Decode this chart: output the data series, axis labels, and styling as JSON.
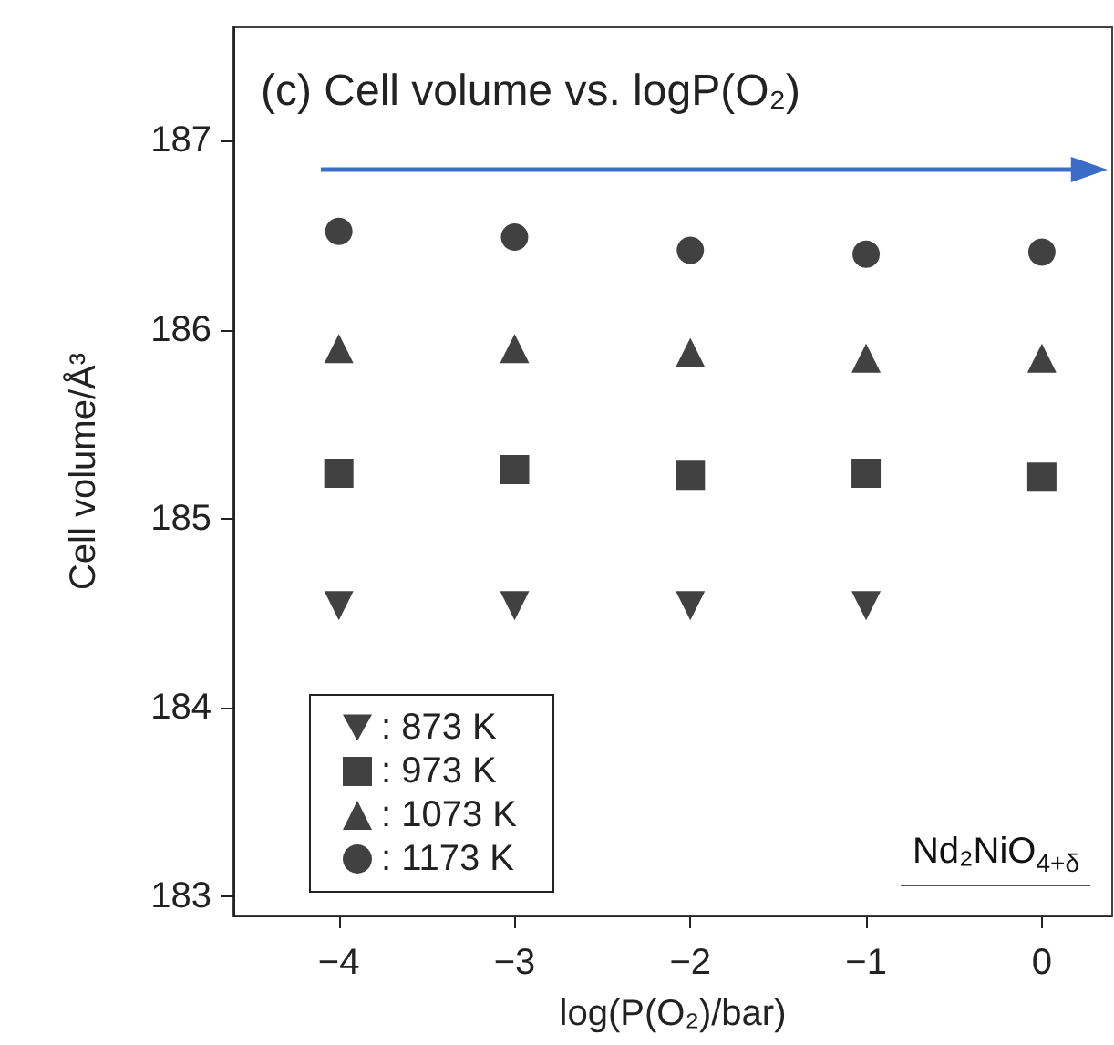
{
  "chart_data": {
    "type": "scatter",
    "title": "(c) Cell volume vs. logP(O₂)",
    "xlabel": "log(P(O₂)/bar)",
    "ylabel": "Cell volume/Å³",
    "annotations": [
      "Nd₂NiO$_{4+δ}$"
    ],
    "x": [
      -4,
      -3,
      -2,
      -1,
      0
    ],
    "series": [
      {
        "name": ": 873 K",
        "color": "#111111",
        "marker": "triangle_down",
        "values": [
          184.54,
          184.54,
          184.54,
          184.54,
          null
        ]
      },
      {
        "name": ": 973 K",
        "color": "#111111",
        "marker": "square",
        "values": [
          185.24,
          185.26,
          185.23,
          185.24,
          185.22
        ]
      },
      {
        "name": ": 1073 K",
        "color": "#111111",
        "marker": "triangle",
        "values": [
          185.9,
          185.9,
          185.88,
          185.85,
          185.85
        ]
      },
      {
        "name": ": 1173 K",
        "color": "#111111",
        "marker": "circle",
        "values": [
          186.52,
          186.49,
          186.42,
          186.4,
          186.41
        ]
      }
    ],
    "xlim": [
      -4.6,
      0.4
    ],
    "xticks": [
      -4,
      -3,
      -2,
      -1,
      0
    ],
    "ylim": [
      182.9,
      187.6
    ],
    "yticks": [
      183,
      184,
      185,
      186,
      187
    ],
    "grid": false,
    "legend": "bottom left"
  }
}
